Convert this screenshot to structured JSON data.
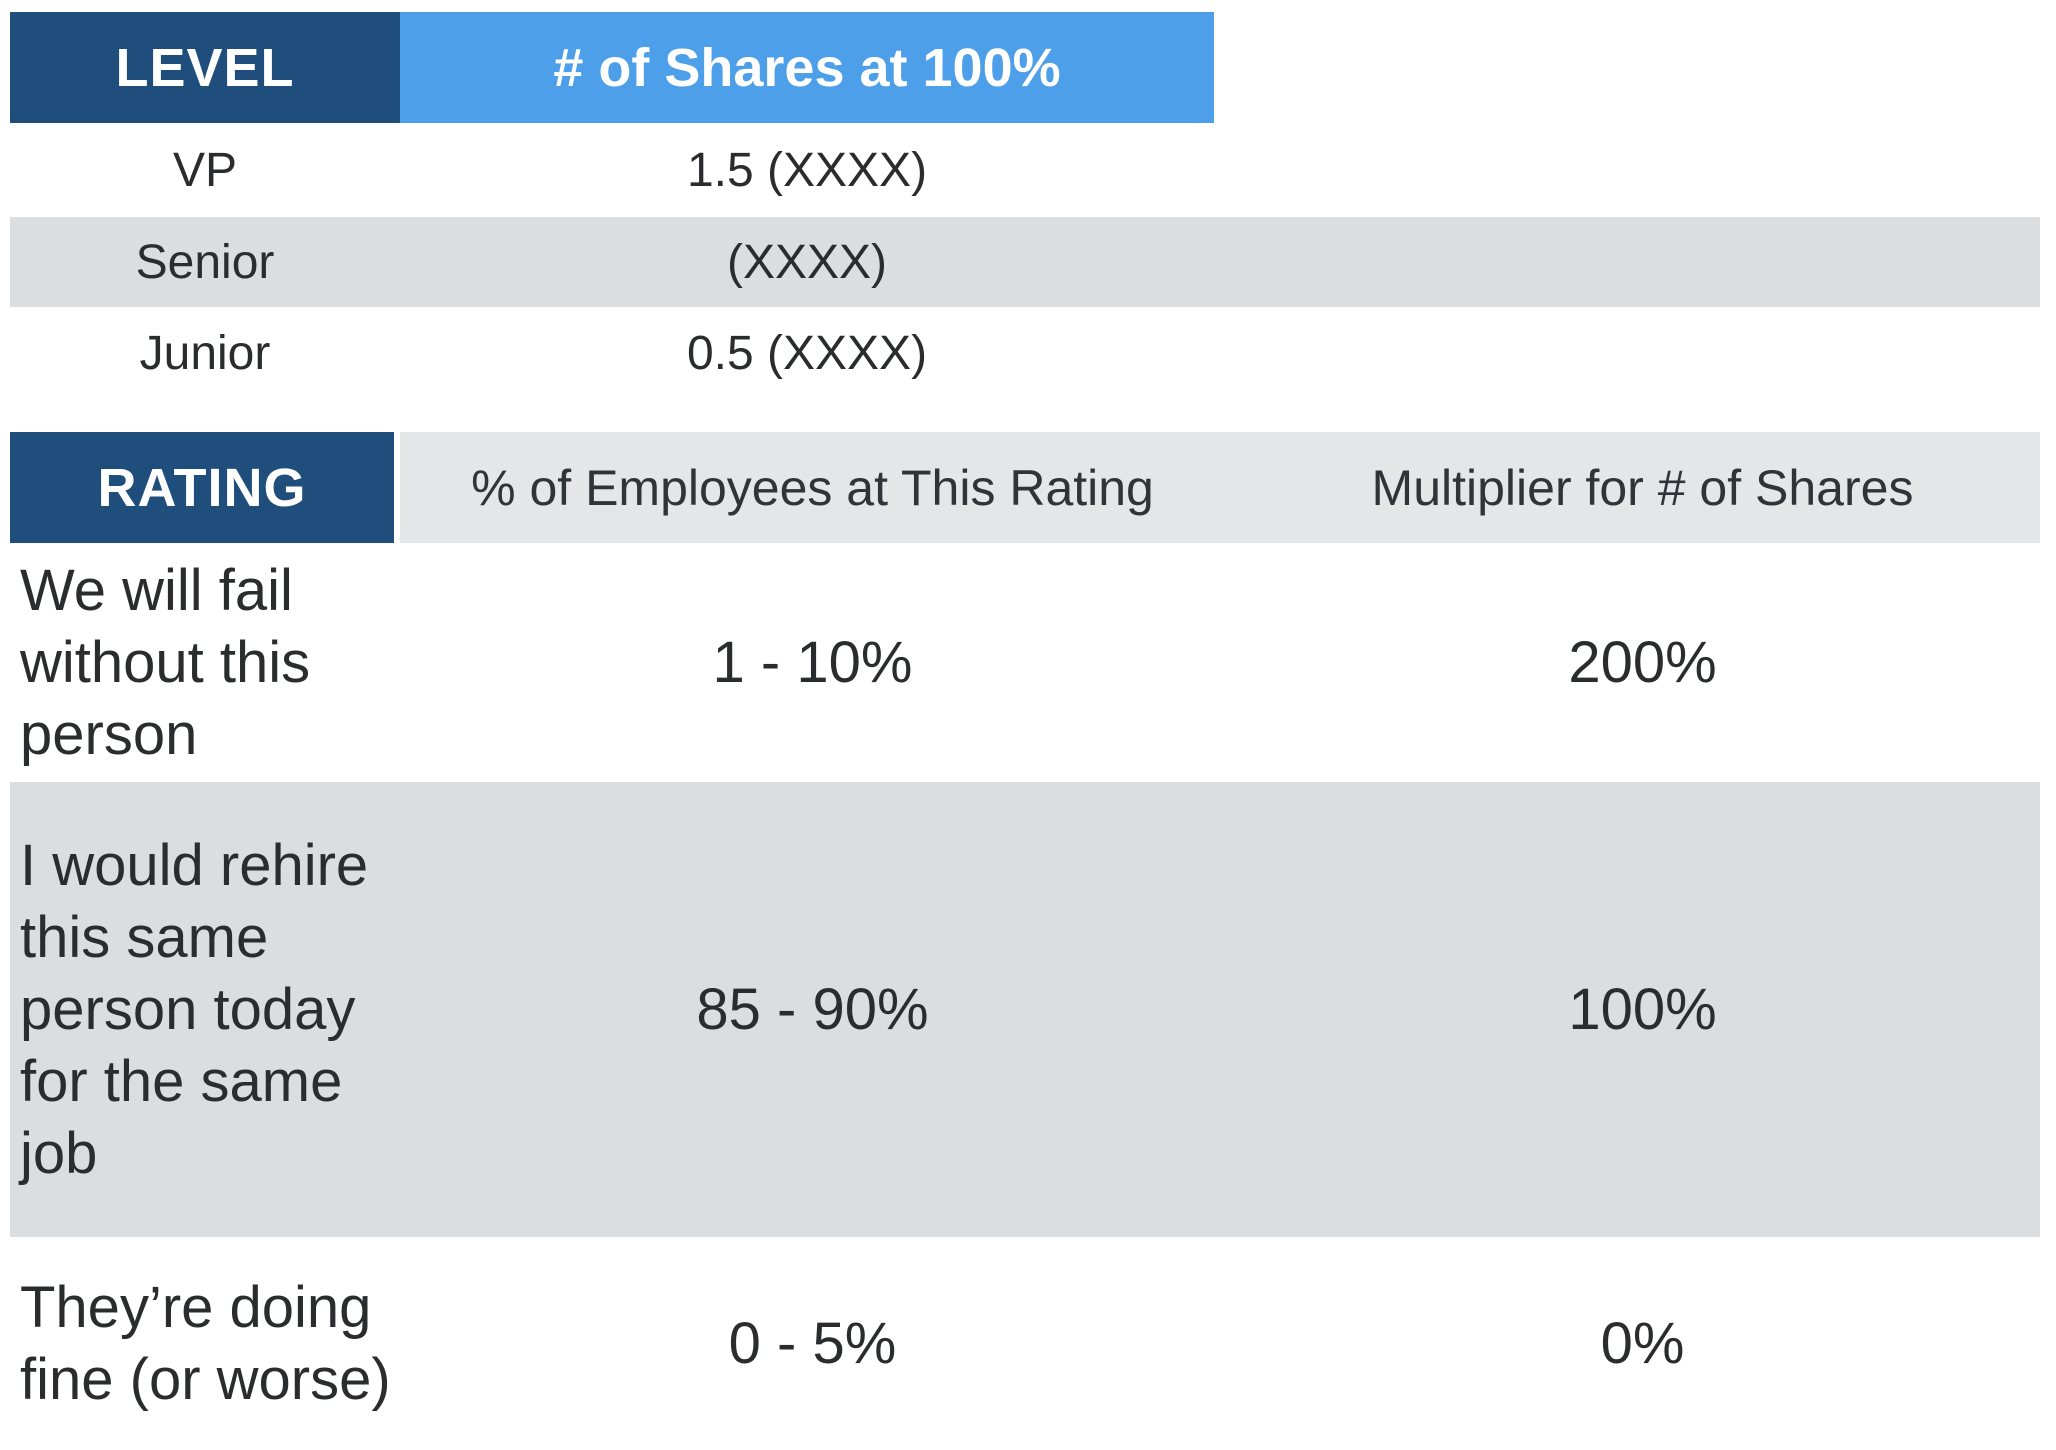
{
  "colors": {
    "dark_blue": "#1f4e7c",
    "light_blue": "#4c9fe8",
    "row_gray": "#dcddde",
    "header_gray": "#e4e6e8",
    "text": "#2b2c2e"
  },
  "level_table": {
    "header": {
      "level": "LEVEL",
      "shares": "# of Shares at 100%"
    },
    "rows": [
      {
        "level": "VP",
        "shares": "1.5 (XXXX)"
      },
      {
        "level": "Senior",
        "shares": "(XXXX)"
      },
      {
        "level": "Junior",
        "shares": "0.5 (XXXX)"
      }
    ]
  },
  "rating_table": {
    "header": {
      "rating": "RATING",
      "pct": "% of Employees at This Rating",
      "multiplier": "Multiplier for # of Shares"
    },
    "rows": [
      {
        "rating": "We will fail without this person",
        "pct": "1 - 10%",
        "multiplier": "200%"
      },
      {
        "rating": "I would rehire this same person today for the same job",
        "pct": "85 - 90%",
        "multiplier": "100%"
      },
      {
        "rating": "They’re doing fine (or worse)",
        "pct": "0 - 5%",
        "multiplier": "0%"
      }
    ]
  }
}
